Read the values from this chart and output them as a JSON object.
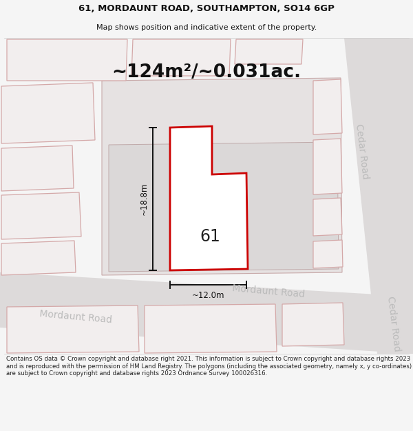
{
  "title_line1": "61, MORDAUNT ROAD, SOUTHAMPTON, SO14 6GP",
  "title_line2": "Map shows position and indicative extent of the property.",
  "area_label": "~124m²/~0.031ac.",
  "property_number": "61",
  "dim_height": "~18.8m",
  "dim_width": "~12.0m",
  "road_label_left": "Mordaunt Road",
  "road_label_mid": "Mordaunt Road",
  "road_label_cedar1": "Cedar Road",
  "road_label_cedar2": "Cedar Road",
  "footer": "Contains OS data © Crown copyright and database right 2021. This information is subject to Crown copyright and database rights 2023 and is reproduced with the permission of HM Land Registry. The polygons (including the associated geometry, namely x, y co-ordinates) are subject to Crown copyright and database rights 2023 Ordnance Survey 100026316.",
  "bg_color": "#f5f5f5",
  "map_bg": "#efecec",
  "building_fill": "#f2eeee",
  "building_stroke": "#d4a8a8",
  "subject_stroke": "#cc0000",
  "subject_fill": "#ffffff",
  "block_fill": "#e6e2e2",
  "block_stroke": "#c8aaaa",
  "road_fill": "#e2dfdf",
  "dim_color": "#111111",
  "footer_color": "#222222",
  "title_color": "#111111",
  "road_text_color": "#bbbbbb"
}
